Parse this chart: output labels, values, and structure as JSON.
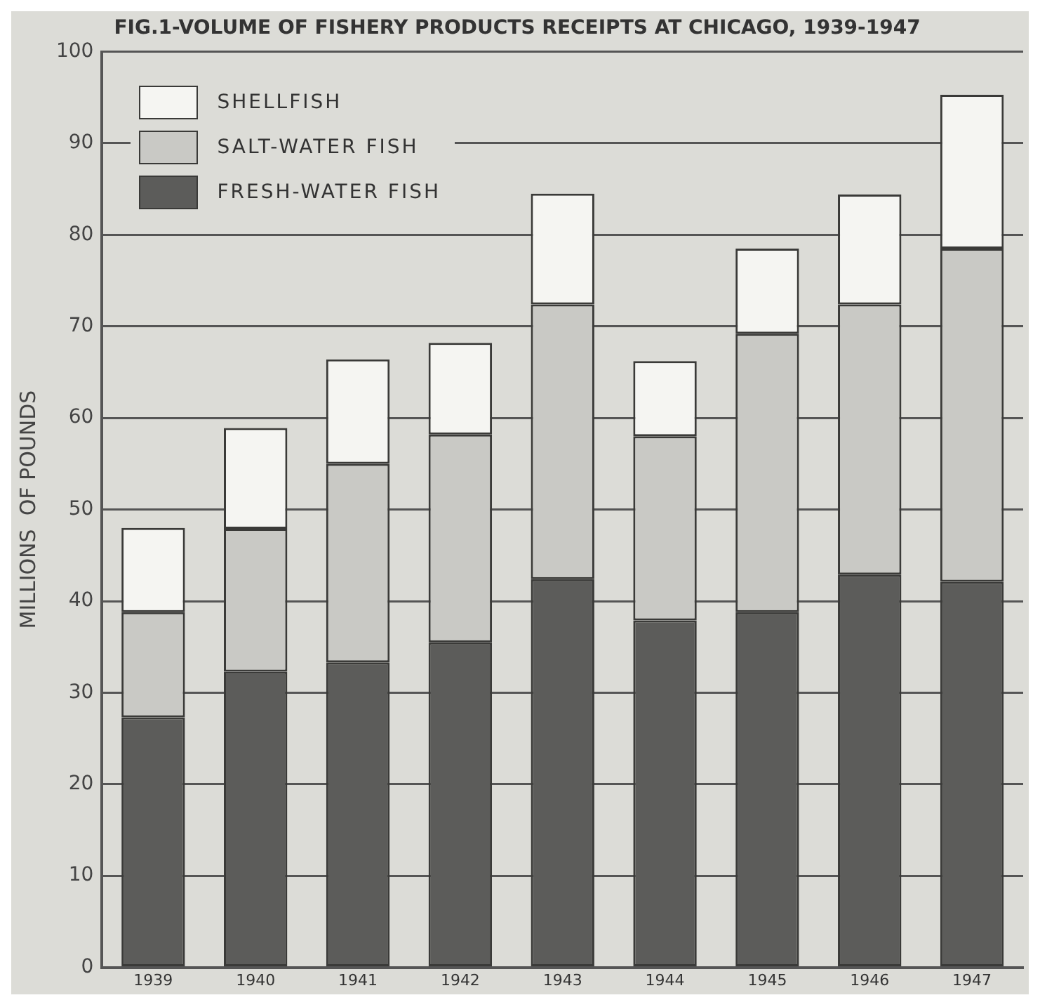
{
  "chart_data": {
    "type": "bar",
    "title": "FIG.1-VOLUME OF FISHERY PRODUCTS RECEIPTS AT CHICAGO, 1939-1947",
    "ylabel": "MILLIONS  OF POUNDS",
    "categories": [
      "1939",
      "1940",
      "1941",
      "1942",
      "1943",
      "1944",
      "1945",
      "1946",
      "1947"
    ],
    "stacked": true,
    "series": [
      {
        "name": "FRESH-WATER FISH",
        "color": "#5c5c5a",
        "values": [
          27.3,
          32.3,
          33.3,
          35.5,
          42.4,
          37.9,
          38.8,
          42.9,
          42.1
        ]
      },
      {
        "name": "SALT-WATER FISH",
        "color": "#c9c9c5",
        "values": [
          11.5,
          15.6,
          21.7,
          22.7,
          30.0,
          20.1,
          30.4,
          29.5,
          36.4
        ]
      },
      {
        "name": "SHELLFISH",
        "color": "#f5f5f2",
        "values": [
          9.2,
          11.0,
          11.4,
          10.0,
          12.1,
          8.2,
          9.3,
          12.0,
          16.8
        ]
      }
    ],
    "ylim": [
      0,
      100
    ],
    "yticks": [
      0,
      10,
      20,
      30,
      40,
      50,
      60,
      70,
      80,
      90,
      100
    ],
    "grid": "y",
    "legend": "top left"
  }
}
